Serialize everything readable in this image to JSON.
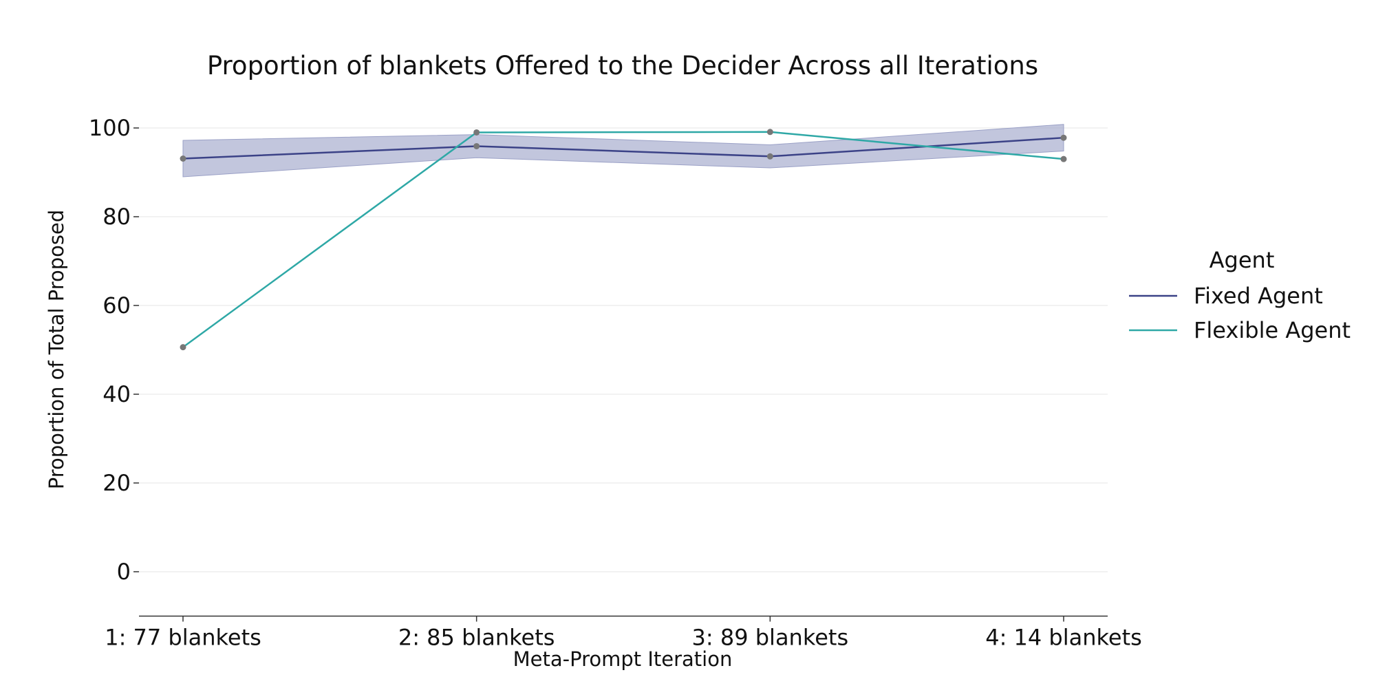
{
  "chart_data": {
    "type": "line",
    "title": "Proportion of blankets Offered to the Decider Across all Iterations",
    "xlabel": "Meta-Prompt Iteration",
    "ylabel": "Proportion of Total Proposed",
    "categories": [
      "1: 77 blankets",
      "2: 85 blankets",
      "3: 89 blankets",
      "4: 14 blankets"
    ],
    "ylim": [
      -10,
      108
    ],
    "yticks": [
      0,
      20,
      40,
      60,
      80,
      100
    ],
    "grid": "horizontal",
    "legend": {
      "title": "Agent",
      "placement": "right"
    },
    "series": [
      {
        "name": "Fixed Agent",
        "color": "#3b4287",
        "values": [
          93.1,
          95.9,
          93.6,
          97.8
        ],
        "ci_lower": [
          89.0,
          93.3,
          91.0,
          94.8
        ],
        "ci_upper": [
          97.2,
          98.5,
          96.2,
          100.8
        ],
        "ci_color": "#9aa0c6"
      },
      {
        "name": "Flexible Agent",
        "color": "#2ea8a6",
        "values": [
          50.6,
          99.0,
          99.1,
          93.0
        ]
      }
    ],
    "marker_color": "#777777"
  }
}
